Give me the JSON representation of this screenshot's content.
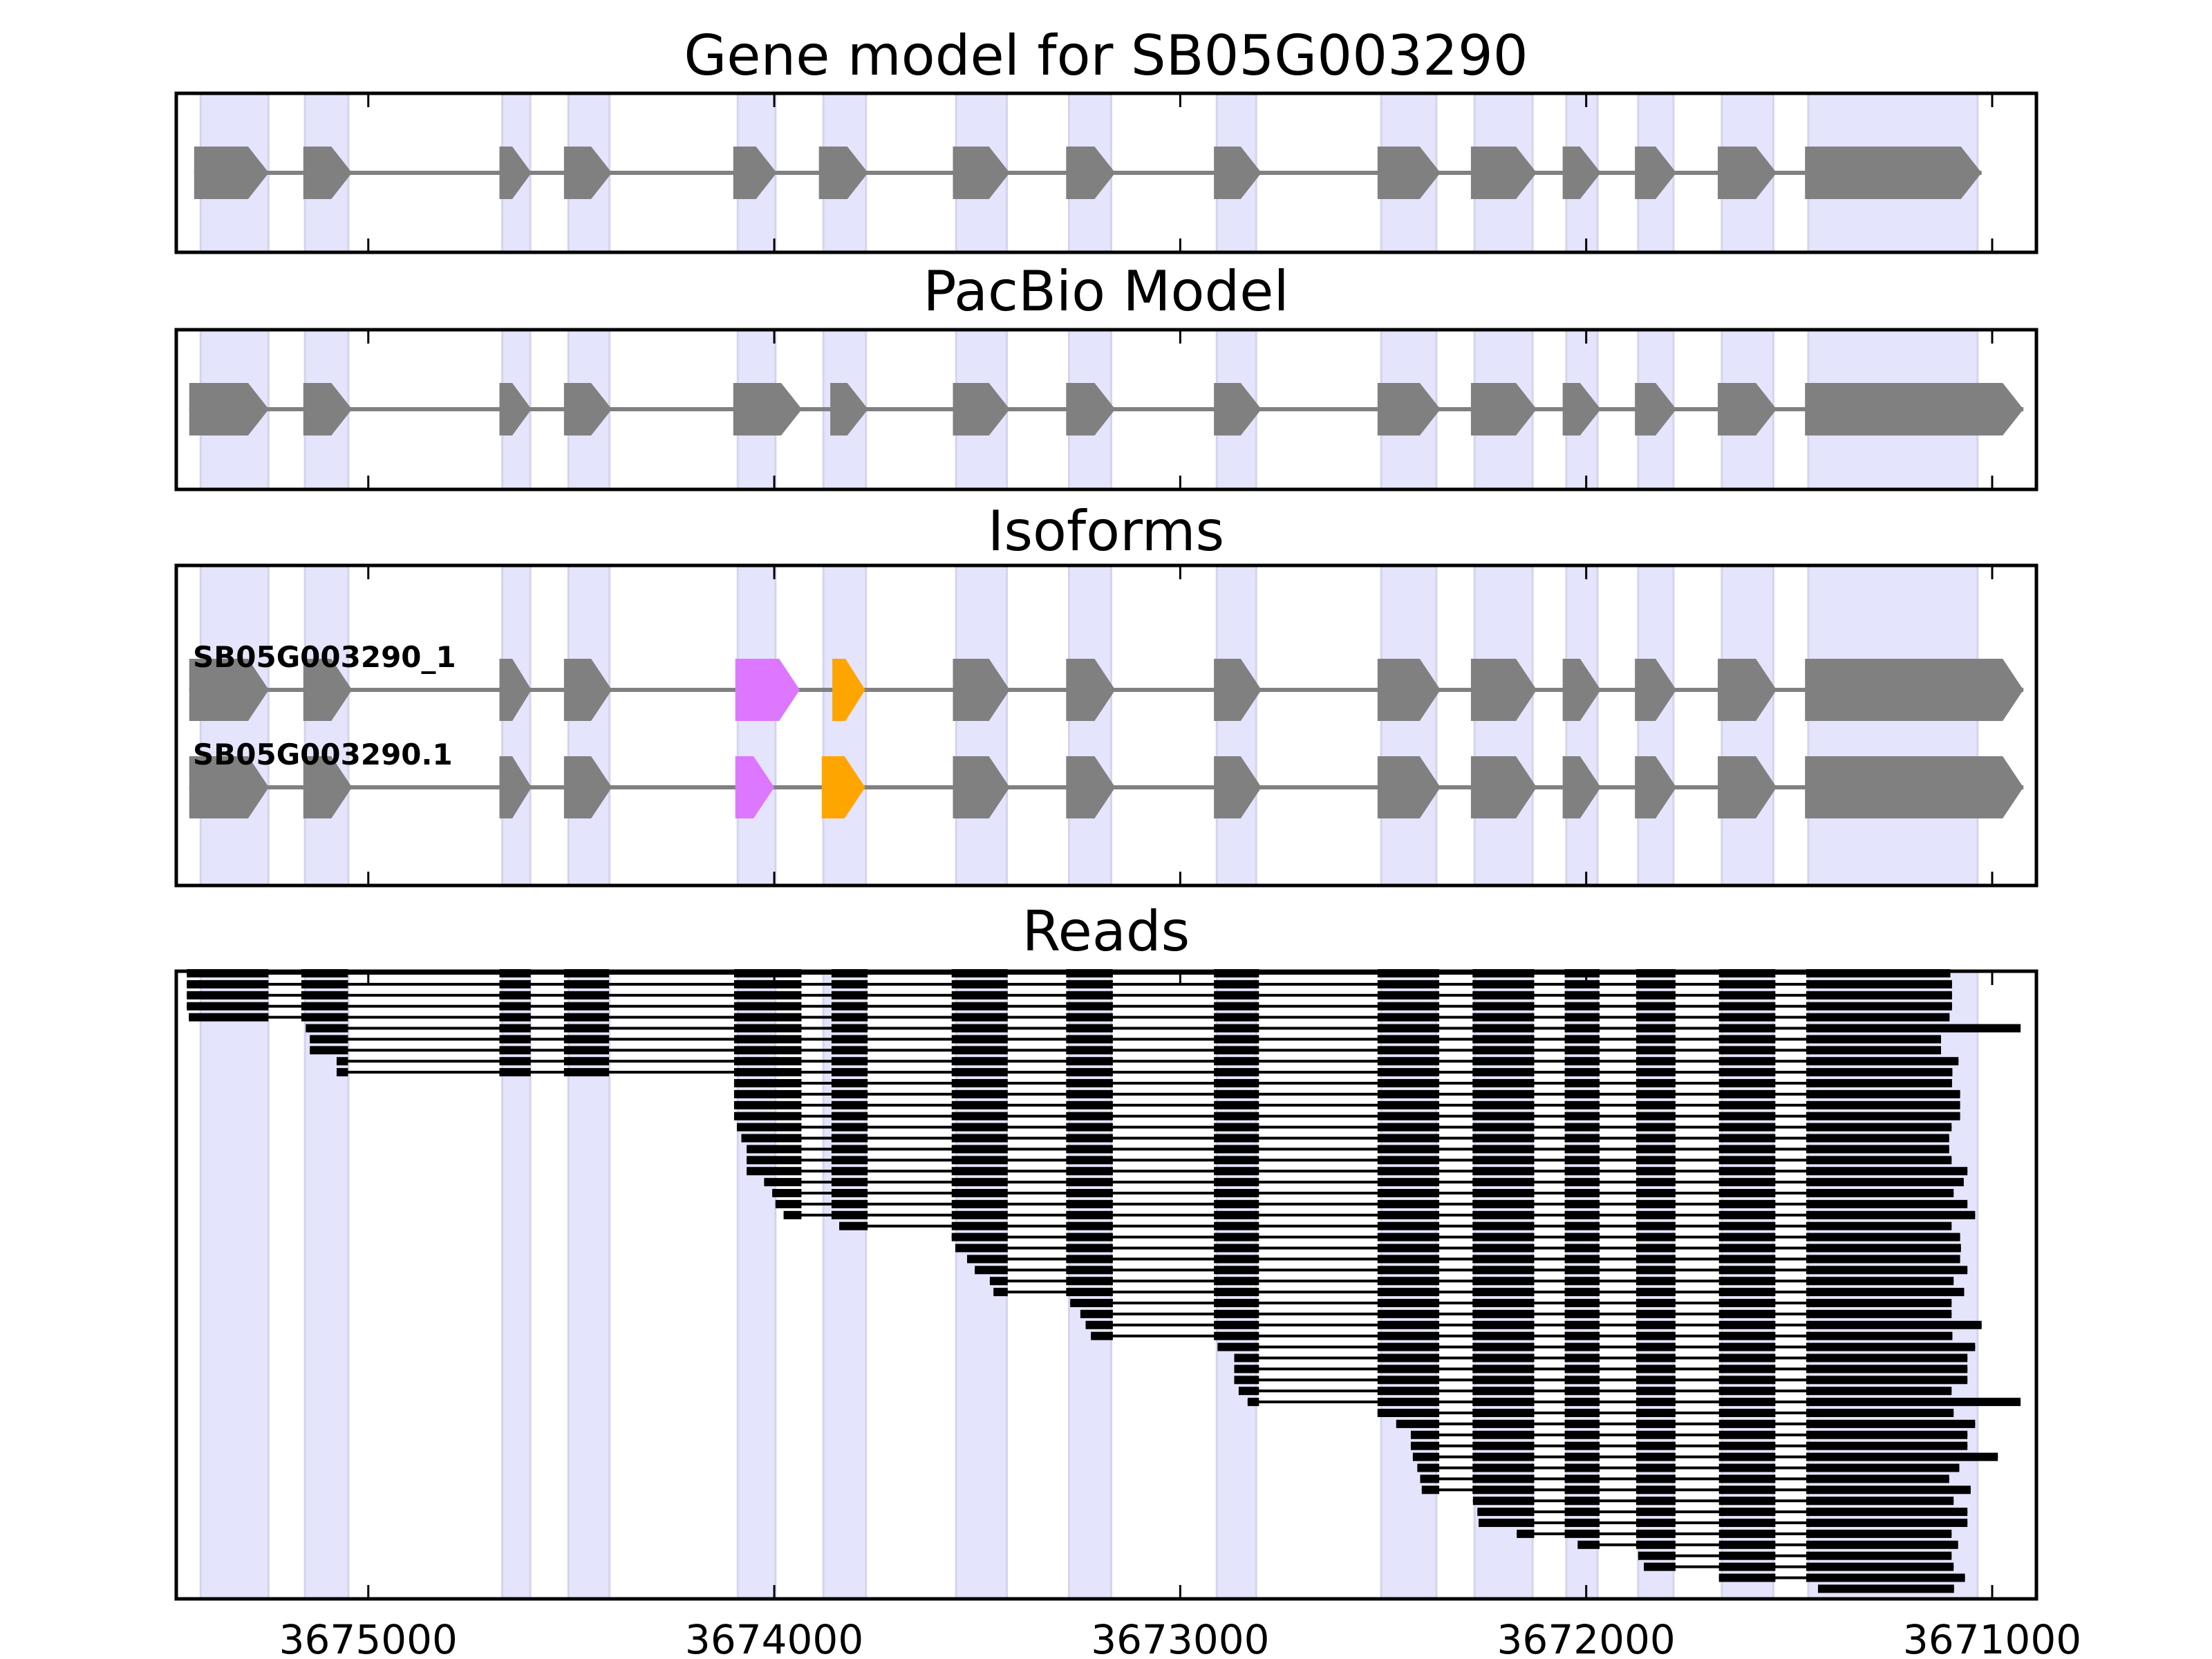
{
  "colors": {
    "exon": "#808080",
    "intron": "#808080",
    "shade": "#e4e4fc",
    "shade_edge": "#d4d4ec",
    "alt_exon_a": "#dd77ff",
    "alt_exon_b": "#ffa500",
    "read": "#000000"
  },
  "chart_data": {
    "type": "gene-structure",
    "xlim": [
      3675473,
      3670891
    ],
    "x_reversed": true,
    "xticks": [
      3675000,
      3674000,
      3673000,
      3672000,
      3671000
    ],
    "xtick_labels": [
      "3675000",
      "3674000",
      "3673000",
      "3672000",
      "3671000"
    ],
    "shaded_regions": [
      [
        3675413,
        3675246
      ],
      [
        3675156,
        3675049
      ],
      [
        3674670,
        3674601
      ],
      [
        3674507,
        3674406
      ],
      [
        3674090,
        3673997
      ],
      [
        3673879,
        3673774
      ],
      [
        3673552,
        3673427
      ],
      [
        3673274,
        3673170
      ],
      [
        3672910,
        3672813
      ],
      [
        3672505,
        3672369
      ],
      [
        3672275,
        3672132
      ],
      [
        3672049,
        3671972
      ],
      [
        3671872,
        3671785
      ],
      [
        3671666,
        3671539
      ],
      [
        3671453,
        3671036
      ]
    ],
    "panels": [
      {
        "title": "Gene model for SB05G003290",
        "tracks": [
          {
            "label": "",
            "exons": [
              [
                3675429,
                3675245
              ],
              [
                3675160,
                3675040
              ],
              [
                3674677,
                3674598
              ],
              [
                3674518,
                3674400
              ],
              [
                3674101,
                3673994
              ],
              [
                3673890,
                3673769
              ],
              [
                3673560,
                3673420
              ],
              [
                3673281,
                3673160
              ],
              [
                3672917,
                3672800
              ],
              [
                3672514,
                3672359
              ],
              [
                3672284,
                3672122
              ],
              [
                3672058,
                3671964
              ],
              [
                3671880,
                3671778
              ],
              [
                3671676,
                3671531
              ],
              [
                3671461,
                3671026
              ]
            ],
            "highlight": {}
          }
        ]
      },
      {
        "title": "PacBio Model",
        "tracks": [
          {
            "label": "",
            "exons": [
              [
                3675441,
                3675245
              ],
              [
                3675160,
                3675040
              ],
              [
                3674677,
                3674598
              ],
              [
                3674518,
                3674400
              ],
              [
                3674101,
                3673932
              ],
              [
                3673862,
                3673769
              ],
              [
                3673560,
                3673420
              ],
              [
                3673281,
                3673160
              ],
              [
                3672917,
                3672800
              ],
              [
                3672514,
                3672359
              ],
              [
                3672284,
                3672122
              ],
              [
                3672058,
                3671964
              ],
              [
                3671880,
                3671778
              ],
              [
                3671676,
                3671531
              ],
              [
                3671461,
                3670923
              ]
            ],
            "highlight": {}
          }
        ]
      },
      {
        "title": "Isoforms",
        "tracks": [
          {
            "label": "SB05G003290_1",
            "exons": [
              [
                3675441,
                3675245
              ],
              [
                3675160,
                3675040
              ],
              [
                3674677,
                3674598
              ],
              [
                3674518,
                3674400
              ],
              [
                3674096,
                3673937
              ],
              [
                3673857,
                3673776
              ],
              [
                3673560,
                3673420
              ],
              [
                3673281,
                3673160
              ],
              [
                3672917,
                3672800
              ],
              [
                3672514,
                3672359
              ],
              [
                3672284,
                3672122
              ],
              [
                3672058,
                3671964
              ],
              [
                3671880,
                3671778
              ],
              [
                3671676,
                3671531
              ],
              [
                3671461,
                3670923
              ]
            ],
            "highlight": {
              "4": "alt_exon_a",
              "5": "alt_exon_b"
            }
          },
          {
            "label": "SB05G003290.1",
            "exons": [
              [
                3675441,
                3675245
              ],
              [
                3675160,
                3675040
              ],
              [
                3674677,
                3674598
              ],
              [
                3674518,
                3674400
              ],
              [
                3674096,
                3674000
              ],
              [
                3673883,
                3673776
              ],
              [
                3673560,
                3673420
              ],
              [
                3673281,
                3673160
              ],
              [
                3672917,
                3672800
              ],
              [
                3672514,
                3672359
              ],
              [
                3672284,
                3672122
              ],
              [
                3672058,
                3671964
              ],
              [
                3671880,
                3671778
              ],
              [
                3671676,
                3671531
              ],
              [
                3671461,
                3670923
              ]
            ],
            "highlight": {
              "4": "alt_exon_a",
              "5": "alt_exon_b"
            }
          }
        ]
      },
      {
        "title": "Reads",
        "read_exons": [
          [
            3675447,
            3675246
          ],
          [
            3675165,
            3675050
          ],
          [
            3674677,
            3674600
          ],
          [
            3674518,
            3674407
          ],
          [
            3674099,
            3673933
          ],
          [
            3673859,
            3673770
          ],
          [
            3673563,
            3673425
          ],
          [
            3673281,
            3673166
          ],
          [
            3672917,
            3672806
          ],
          [
            3672514,
            3672362
          ],
          [
            3672280,
            3672128
          ],
          [
            3672053,
            3671967
          ],
          [
            3671877,
            3671780
          ],
          [
            3671673,
            3671534
          ],
          [
            3671458,
            3670900
          ]
        ],
        "reads": [
          [
            3675447,
            3671103
          ],
          [
            3675447,
            3671099
          ],
          [
            3675447,
            3671099
          ],
          [
            3675447,
            3671099
          ],
          [
            3675442,
            3671105
          ],
          [
            3675154,
            3670930
          ],
          [
            3675144,
            3671126
          ],
          [
            3675144,
            3671126
          ],
          [
            3675078,
            3671083
          ],
          [
            3675078,
            3671098
          ],
          [
            3674099,
            3671099
          ],
          [
            3674099,
            3671079
          ],
          [
            3674099,
            3671079
          ],
          [
            3674099,
            3671079
          ],
          [
            3674092,
            3671100
          ],
          [
            3674081,
            3671106
          ],
          [
            3674068,
            3671106
          ],
          [
            3674068,
            3671100
          ],
          [
            3674068,
            3671061
          ],
          [
            3674025,
            3671070
          ],
          [
            3674005,
            3671095
          ],
          [
            3673997,
            3671061
          ],
          [
            3673977,
            3671042
          ],
          [
            3673840,
            3671100
          ],
          [
            3673563,
            3671079
          ],
          [
            3673554,
            3671077
          ],
          [
            3673525,
            3671079
          ],
          [
            3673506,
            3671061
          ],
          [
            3673469,
            3671095
          ],
          [
            3673460,
            3671069
          ],
          [
            3673271,
            3671100
          ],
          [
            3673246,
            3671100
          ],
          [
            3673233,
            3671026
          ],
          [
            3673220,
            3671098
          ],
          [
            3672908,
            3671042
          ],
          [
            3672867,
            3671061
          ],
          [
            3672867,
            3671061
          ],
          [
            3672867,
            3671061
          ],
          [
            3672856,
            3671100
          ],
          [
            3672834,
            3670930
          ],
          [
            3672514,
            3671095
          ],
          [
            3672468,
            3671042
          ],
          [
            3672432,
            3671061
          ],
          [
            3672432,
            3671061
          ],
          [
            3672427,
            3670986
          ],
          [
            3672416,
            3671081
          ],
          [
            3672409,
            3671106
          ],
          [
            3672405,
            3671053
          ],
          [
            3672279,
            3671095
          ],
          [
            3672268,
            3671061
          ],
          [
            3672265,
            3671061
          ],
          [
            3672171,
            3671100
          ],
          [
            3672021,
            3671084
          ],
          [
            3671872,
            3671100
          ],
          [
            3671858,
            3671095
          ],
          [
            3671673,
            3671067
          ],
          [
            3671429,
            3671094
          ]
        ]
      }
    ]
  }
}
